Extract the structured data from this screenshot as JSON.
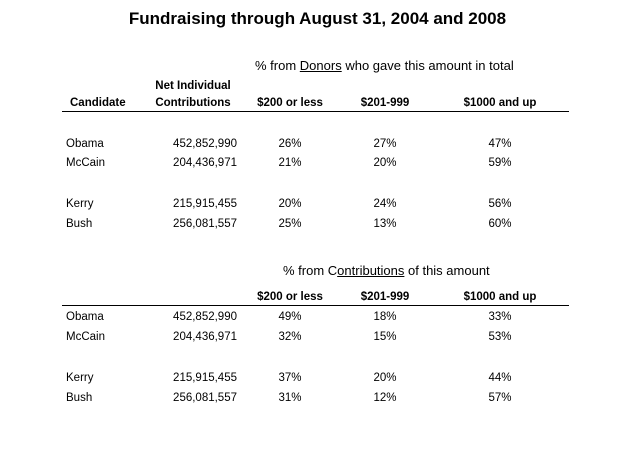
{
  "title": "Fundraising through August 31, 2004 and 2008",
  "donors_section": {
    "caption_pre": "% from ",
    "caption_key": "Donors",
    "caption_post": " who gave this amount in total",
    "headers": {
      "candidate": "Candidate",
      "net_line1": "Net Individual",
      "net_line2": "Contributions",
      "col1": "$200 or less",
      "col2": "$201-999",
      "col3": "$1000 and up"
    },
    "rows": [
      {
        "candidate": "Obama",
        "net": "452,852,990",
        "c1": "26%",
        "c2": "27%",
        "c3": "47%"
      },
      {
        "candidate": "McCain",
        "net": "204,436,971",
        "c1": "21%",
        "c2": "20%",
        "c3": "59%"
      },
      {
        "candidate": "Kerry",
        "net": "215,915,455",
        "c1": "20%",
        "c2": "24%",
        "c3": "56%"
      },
      {
        "candidate": "Bush",
        "net": "256,081,557",
        "c1": "25%",
        "c2": "13%",
        "c3": "60%"
      }
    ]
  },
  "contributions_section": {
    "caption_pre": "% from C",
    "caption_key": "ontributions",
    "caption_post": " of this amount",
    "headers": {
      "col1": "$200 or less",
      "col2": "$201-999",
      "col3": "$1000 and up"
    },
    "rows": [
      {
        "candidate": "Obama",
        "net": "452,852,990",
        "c1": "49%",
        "c2": "18%",
        "c3": "33%"
      },
      {
        "candidate": "McCain",
        "net": "204,436,971",
        "c1": "32%",
        "c2": "15%",
        "c3": "53%"
      },
      {
        "candidate": "Kerry",
        "net": "215,915,455",
        "c1": "37%",
        "c2": "20%",
        "c3": "44%"
      },
      {
        "candidate": "Bush",
        "net": "256,081,557",
        "c1": "31%",
        "c2": "12%",
        "c3": "57%"
      }
    ]
  }
}
